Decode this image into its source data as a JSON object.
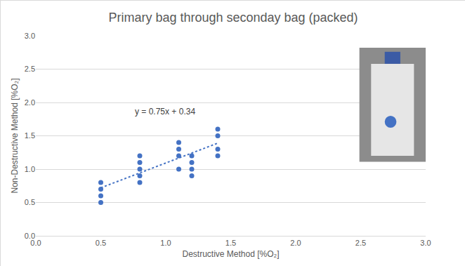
{
  "chart_data": {
    "type": "scatter",
    "title": "Primary bag through seconday bag (packed)",
    "x_label": "Destructive Method [%O₂]",
    "y_label": "Non-Destructive Method [%O₂]",
    "annotations": [
      {
        "text": "y = 0.75x + 0.34"
      }
    ],
    "series": [
      {
        "type": "scatter",
        "marker": "circle",
        "color": "#4472c4",
        "x": [
          0.5,
          0.5,
          0.5,
          0.5,
          0.8,
          0.8,
          0.8,
          0.8,
          0.8,
          1.1,
          1.1,
          1.1,
          1.1,
          1.2,
          1.2,
          1.2,
          1.2,
          1.4,
          1.4,
          1.4,
          1.4
        ],
        "values": [
          0.5,
          0.6,
          0.7,
          0.8,
          0.8,
          0.9,
          1.0,
          1.1,
          1.2,
          1.0,
          1.2,
          1.3,
          1.4,
          0.9,
          1.0,
          1.1,
          1.2,
          1.2,
          1.3,
          1.5,
          1.6
        ]
      },
      {
        "type": "line",
        "line_style": "dotted",
        "color": "#4472c4",
        "x": [
          0.5,
          1.4
        ],
        "values": [
          0.72,
          1.39
        ]
      }
    ],
    "xlim": [
      0,
      3
    ],
    "ylim": [
      0,
      3
    ],
    "xticks": [
      {
        "value": 0,
        "label": "0.0"
      },
      0.5,
      {
        "value": 1,
        "label": "1.0"
      },
      1.5,
      {
        "value": 2,
        "label": "2.0"
      },
      2.5,
      {
        "value": 3,
        "label": "3.0"
      }
    ],
    "yticks": [
      {
        "value": 0,
        "label": "0.0"
      },
      0.5,
      {
        "value": 1,
        "label": "1.0"
      },
      1.5,
      {
        "value": 2,
        "label": "2.0"
      },
      2.5,
      {
        "value": 3,
        "label": "3.0"
      }
    ],
    "grid": true
  }
}
